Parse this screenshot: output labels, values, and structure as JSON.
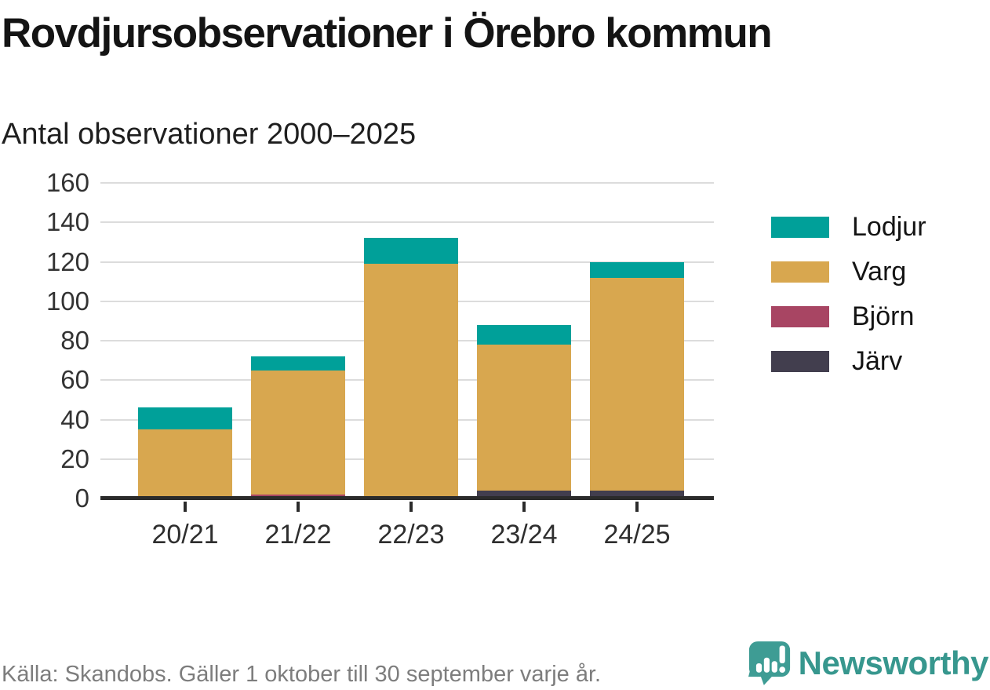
{
  "header": {
    "title": "Rovdjursobservationer i Örebro kommun",
    "subtitle": "Antal observationer 2000–2025"
  },
  "chart_data": {
    "type": "bar",
    "stacked": true,
    "title": "Rovdjursobservationer i Örebro kommun",
    "subtitle": "Antal observationer 2000–2025",
    "categories": [
      "20/21",
      "21/22",
      "22/23",
      "23/24",
      "24/25"
    ],
    "series": [
      {
        "name": "Lodjur",
        "color": "#00a099",
        "values": [
          11,
          7,
          13,
          10,
          8
        ]
      },
      {
        "name": "Varg",
        "color": "#d8a74f",
        "values": [
          34,
          63,
          119,
          74,
          108
        ]
      },
      {
        "name": "Björn",
        "color": "#a84563",
        "values": [
          1,
          2,
          0,
          0,
          0
        ]
      },
      {
        "name": "Järv",
        "color": "#423e4e",
        "values": [
          0,
          0,
          0,
          4,
          4
        ]
      }
    ],
    "totals": [
      46,
      72,
      132,
      88,
      120
    ],
    "xlabel": "",
    "ylabel": "",
    "ylim": [
      0,
      160
    ],
    "yticks": [
      0,
      20,
      40,
      60,
      80,
      100,
      120,
      140,
      160
    ],
    "grid": true,
    "legend_position": "right"
  },
  "footer": {
    "source": "Källa: Skandobs. Gäller 1 oktober till 30 september varje år.",
    "brand": "Newsworthy"
  },
  "colors": {
    "axis": "#2b2b2b",
    "grid": "#dcdcdc",
    "tick_text": "#333333",
    "title_text": "#141414",
    "source_text": "#7d7d7d",
    "brand_teal": "#37978e"
  }
}
